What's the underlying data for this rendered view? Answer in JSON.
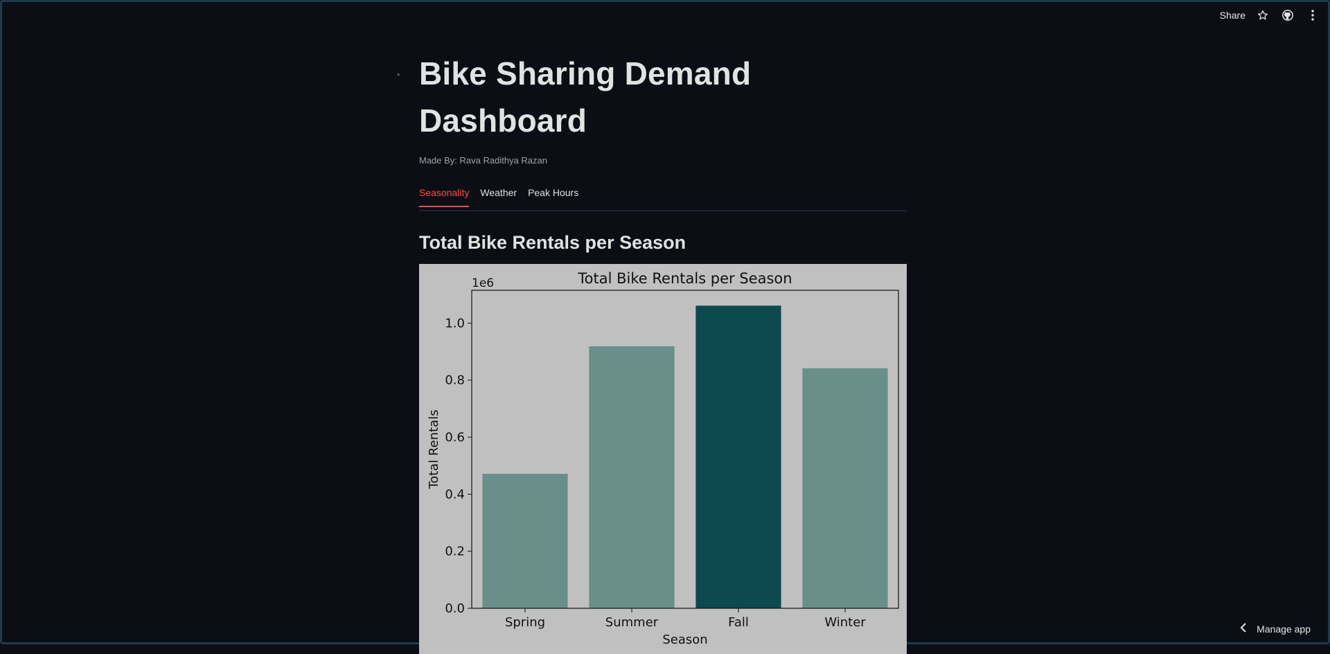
{
  "toolbar": {
    "share_label": "Share",
    "icons": [
      "star-icon",
      "github-icon",
      "more-vertical-icon"
    ]
  },
  "header": {
    "title": "Bike Sharing Demand Dashboard",
    "byline": "Made By: Rava Radithya Razan"
  },
  "tabs": [
    {
      "label": "Seasonality",
      "active": true
    },
    {
      "label": "Weather",
      "active": false
    },
    {
      "label": "Peak Hours",
      "active": false
    }
  ],
  "section": {
    "heading": "Total Bike Rentals per Season"
  },
  "chart_data": {
    "type": "bar",
    "title": "Total Bike Rentals per Season",
    "xlabel": "Season",
    "ylabel": "Total Rentals",
    "offset_label": "1e6",
    "categories": [
      "Spring",
      "Summer",
      "Fall",
      "Winter"
    ],
    "values": [
      471348,
      918589,
      1061129,
      841613
    ],
    "ylim": [
      0,
      1115000
    ],
    "yticks": [
      0.0,
      0.2,
      0.4,
      0.6,
      0.8,
      1.0
    ],
    "ytick_labels": [
      "0.0",
      "0.2",
      "0.4",
      "0.6",
      "0.8",
      "1.0"
    ],
    "tick_scale": 1000000,
    "colors": [
      "#6a8f8b",
      "#6a8f8b",
      "#0c4a4f",
      "#6a8f8b"
    ],
    "background": "#c0c0c0",
    "grid": false,
    "legend": "none"
  },
  "footer": {
    "manage_label": "Manage app"
  },
  "colors": {
    "page_bg": "#0b0f15",
    "accent": "#ff4b4b"
  }
}
